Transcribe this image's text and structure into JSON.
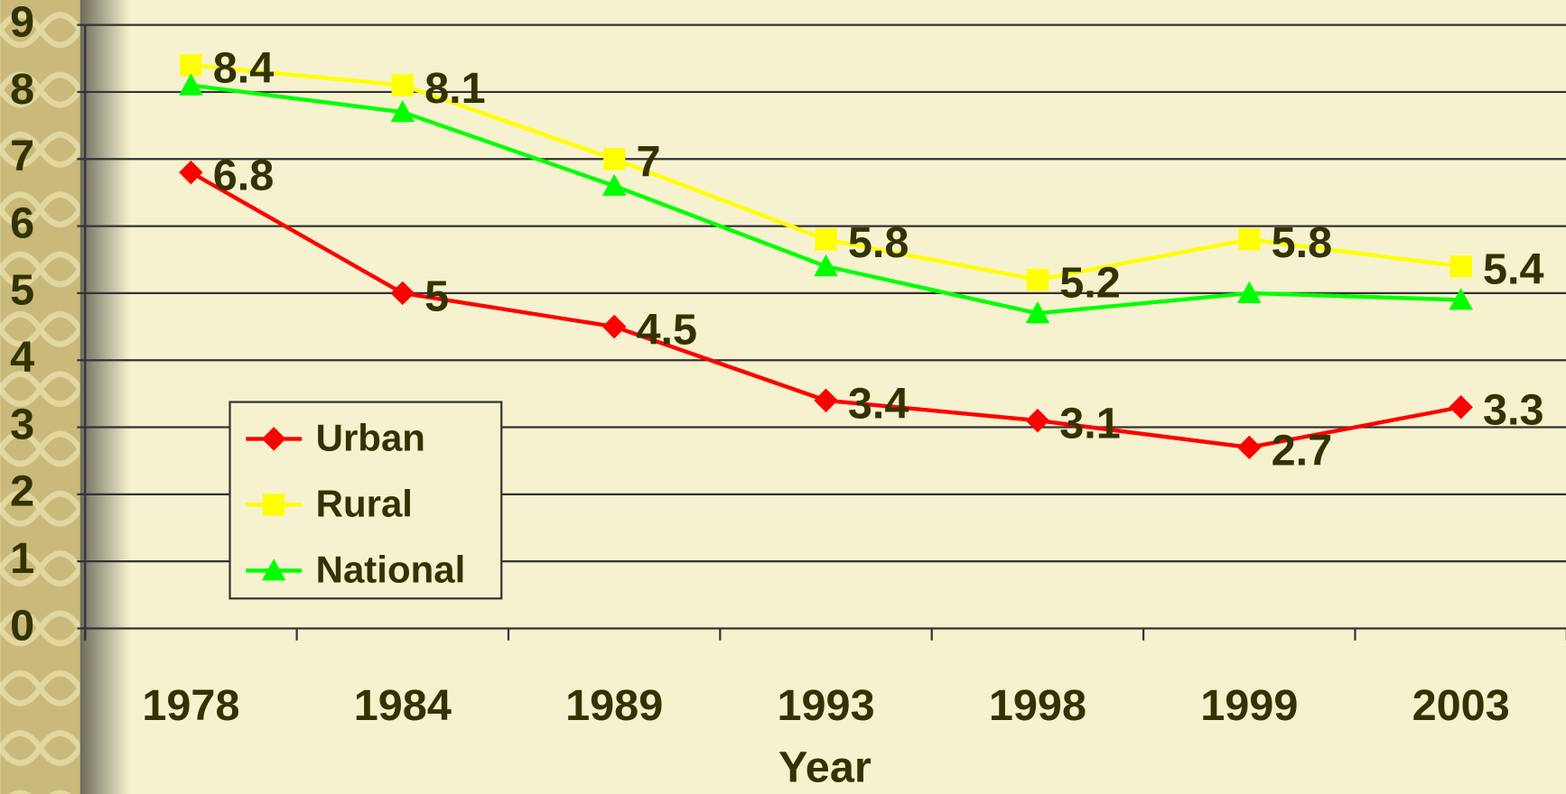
{
  "chart_data": {
    "type": "line",
    "x_label": "Year",
    "categories": [
      "1978",
      "1984",
      "1989",
      "1993",
      "1998",
      "1999",
      "2003"
    ],
    "series": [
      {
        "name": "Urban",
        "color": "#ff0000",
        "marker": "diamond",
        "labels": true,
        "values": [
          6.8,
          5,
          4.5,
          3.4,
          3.1,
          2.7,
          3.3
        ]
      },
      {
        "name": "Rural",
        "color": "#ffff00",
        "marker": "square",
        "labels": true,
        "values": [
          8.4,
          8.1,
          7,
          5.8,
          5.2,
          5.8,
          5.4
        ]
      },
      {
        "name": "National",
        "color": "#00ff00",
        "marker": "triangle",
        "labels": false,
        "values": [
          8.1,
          7.7,
          6.6,
          5.4,
          4.7,
          5.0,
          4.9
        ]
      }
    ],
    "ylim": [
      0,
      9
    ],
    "yticks": [
      0,
      1,
      2,
      3,
      4,
      5,
      6,
      7,
      8,
      9
    ],
    "grid": true,
    "legend": "lower-left"
  }
}
